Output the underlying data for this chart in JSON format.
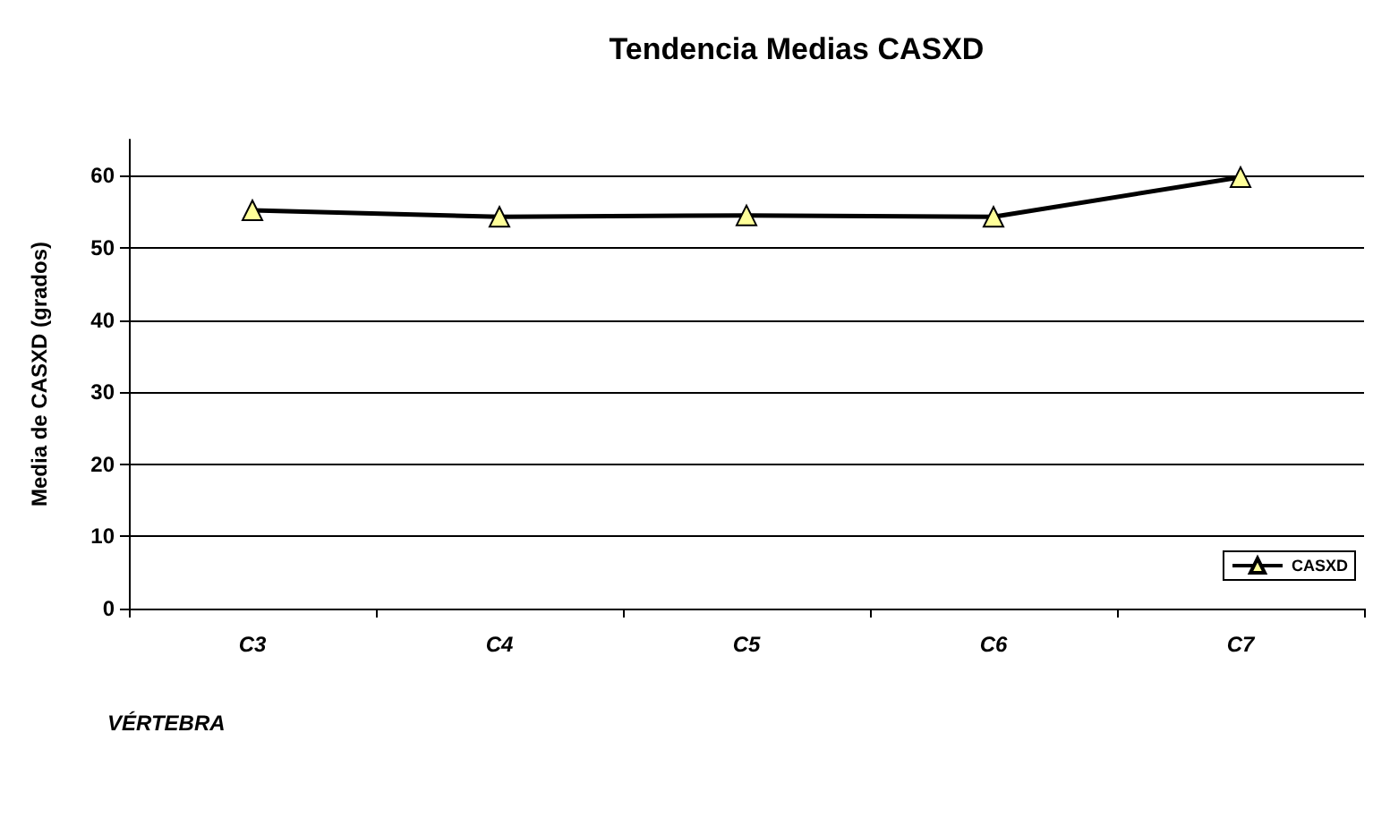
{
  "chart_data": {
    "type": "line",
    "title": "Tendencia Medias CASXD",
    "xlabel": "VÉRTEBRA",
    "ylabel": "Media de CASXD (grados)",
    "categories": [
      "C3",
      "C4",
      "C5",
      "C6",
      "C7"
    ],
    "series": [
      {
        "name": "CASXD",
        "color": "#000000",
        "values": [
          55.2,
          54.3,
          54.5,
          54.3,
          59.8
        ]
      }
    ],
    "ylim": [
      0,
      65
    ],
    "yticks": [
      0,
      10,
      20,
      30,
      40,
      50,
      60
    ],
    "grid": "y",
    "legend": "right",
    "marker": "triangle",
    "line_style": "solid"
  }
}
